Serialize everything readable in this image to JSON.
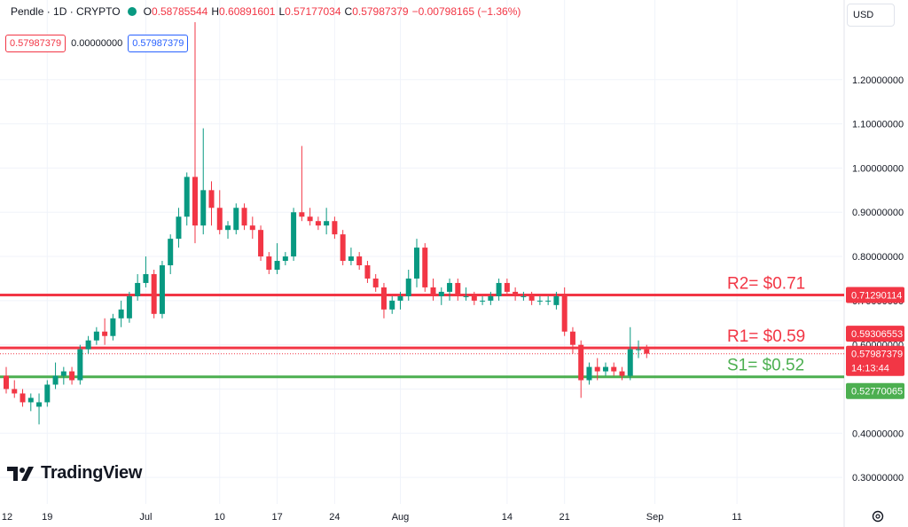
{
  "header": {
    "symbol": "Pendle · 1D · CRYPTO",
    "o_label": "O",
    "o_value": "0.58785544",
    "h_label": "H",
    "h_value": "0.60891601",
    "l_label": "L",
    "l_value": "0.57177034",
    "c_label": "C",
    "c_value": "0.57987379",
    "change": "−0.00798165 (−1.36%)"
  },
  "badges": {
    "price_left": "0.57987379",
    "zero": "0.00000000",
    "price_right": "0.57987379"
  },
  "currency": "USD",
  "logo_text": "TradingView",
  "colors": {
    "up": "#089981",
    "down": "#f23645",
    "resistance": "#f23645",
    "support": "#4caf50"
  },
  "chart_data": {
    "type": "candlestick",
    "y_ticks": [
      "0.30000000",
      "0.40000000",
      "0.50000000",
      "0.60000000",
      "0.70000000",
      "0.80000000",
      "0.90000000",
      "1.00000000",
      "1.10000000",
      "1.20000000"
    ],
    "ylim": [
      0.24,
      1.3
    ],
    "x_ticks": [
      {
        "label": "12",
        "day": -2
      },
      {
        "label": "19",
        "day": 5
      },
      {
        "label": "Jul",
        "day": 17
      },
      {
        "label": "10",
        "day": 26
      },
      {
        "label": "17",
        "day": 33
      },
      {
        "label": "24",
        "day": 40
      },
      {
        "label": "Aug",
        "day": 48
      },
      {
        "label": "14",
        "day": 61
      },
      {
        "label": "21",
        "day": 68
      },
      {
        "label": "Sep",
        "day": 79
      },
      {
        "label": "11",
        "day": 89
      }
    ],
    "levels": [
      {
        "name": "R2",
        "label": "R2= $0.71",
        "value": 0.7129,
        "price_label": "0.71290114",
        "color": "#f23645"
      },
      {
        "name": "R1",
        "label": "R1= $0.59",
        "value": 0.5931,
        "price_label": "0.59306553",
        "color": "#f23645"
      },
      {
        "name": "S1",
        "label": "S1= $0.52",
        "value": 0.5277,
        "price_label": "0.52770065",
        "color": "#4caf50"
      }
    ],
    "last_price": {
      "value": 0.5799,
      "label": "0.57987379",
      "countdown": "14:13:44"
    },
    "candles": [
      [
        0.53,
        0.55,
        0.49,
        0.5
      ],
      [
        0.5,
        0.52,
        0.48,
        0.49
      ],
      [
        0.49,
        0.5,
        0.46,
        0.47
      ],
      [
        0.47,
        0.49,
        0.45,
        0.48
      ],
      [
        0.46,
        0.49,
        0.42,
        0.47
      ],
      [
        0.47,
        0.52,
        0.46,
        0.51
      ],
      [
        0.51,
        0.56,
        0.5,
        0.53
      ],
      [
        0.53,
        0.55,
        0.51,
        0.54
      ],
      [
        0.54,
        0.55,
        0.51,
        0.52
      ],
      [
        0.52,
        0.6,
        0.51,
        0.59
      ],
      [
        0.59,
        0.62,
        0.58,
        0.61
      ],
      [
        0.61,
        0.64,
        0.6,
        0.63
      ],
      [
        0.63,
        0.66,
        0.6,
        0.62
      ],
      [
        0.62,
        0.67,
        0.61,
        0.66
      ],
      [
        0.66,
        0.7,
        0.64,
        0.68
      ],
      [
        0.66,
        0.72,
        0.65,
        0.71
      ],
      [
        0.71,
        0.76,
        0.7,
        0.74
      ],
      [
        0.74,
        0.8,
        0.73,
        0.76
      ],
      [
        0.76,
        0.77,
        0.66,
        0.67
      ],
      [
        0.67,
        0.79,
        0.66,
        0.78
      ],
      [
        0.78,
        0.85,
        0.76,
        0.84
      ],
      [
        0.84,
        0.91,
        0.82,
        0.89
      ],
      [
        0.89,
        0.99,
        0.87,
        0.98
      ],
      [
        0.98,
        1.33,
        0.83,
        0.87
      ],
      [
        0.87,
        1.09,
        0.85,
        0.95
      ],
      [
        0.95,
        0.97,
        0.87,
        0.91
      ],
      [
        0.91,
        0.95,
        0.85,
        0.86
      ],
      [
        0.86,
        0.88,
        0.84,
        0.87
      ],
      [
        0.86,
        0.92,
        0.85,
        0.91
      ],
      [
        0.91,
        0.92,
        0.86,
        0.87
      ],
      [
        0.87,
        0.89,
        0.84,
        0.86
      ],
      [
        0.86,
        0.87,
        0.79,
        0.8
      ],
      [
        0.8,
        0.81,
        0.76,
        0.77
      ],
      [
        0.77,
        0.83,
        0.76,
        0.79
      ],
      [
        0.79,
        0.81,
        0.78,
        0.8
      ],
      [
        0.8,
        0.91,
        0.79,
        0.9
      ],
      [
        0.9,
        1.05,
        0.88,
        0.89
      ],
      [
        0.89,
        0.91,
        0.87,
        0.88
      ],
      [
        0.88,
        0.89,
        0.86,
        0.87
      ],
      [
        0.87,
        0.91,
        0.85,
        0.88
      ],
      [
        0.88,
        0.89,
        0.84,
        0.85
      ],
      [
        0.85,
        0.86,
        0.78,
        0.79
      ],
      [
        0.79,
        0.82,
        0.78,
        0.8
      ],
      [
        0.8,
        0.81,
        0.77,
        0.78
      ],
      [
        0.78,
        0.79,
        0.74,
        0.75
      ],
      [
        0.75,
        0.76,
        0.72,
        0.73
      ],
      [
        0.73,
        0.74,
        0.66,
        0.68
      ],
      [
        0.68,
        0.71,
        0.67,
        0.7
      ],
      [
        0.7,
        0.72,
        0.68,
        0.71
      ],
      [
        0.71,
        0.77,
        0.7,
        0.75
      ],
      [
        0.75,
        0.84,
        0.73,
        0.82
      ],
      [
        0.82,
        0.83,
        0.72,
        0.73
      ],
      [
        0.73,
        0.75,
        0.7,
        0.71
      ],
      [
        0.71,
        0.73,
        0.69,
        0.72
      ],
      [
        0.72,
        0.75,
        0.7,
        0.74
      ],
      [
        0.74,
        0.75,
        0.7,
        0.71
      ],
      [
        0.71,
        0.73,
        0.7,
        0.71
      ],
      [
        0.71,
        0.72,
        0.69,
        0.7
      ],
      [
        0.7,
        0.71,
        0.69,
        0.7
      ],
      [
        0.7,
        0.72,
        0.69,
        0.71
      ],
      [
        0.71,
        0.75,
        0.7,
        0.74
      ],
      [
        0.74,
        0.75,
        0.71,
        0.72
      ],
      [
        0.72,
        0.73,
        0.7,
        0.71
      ],
      [
        0.71,
        0.72,
        0.7,
        0.71
      ],
      [
        0.71,
        0.72,
        0.69,
        0.7
      ],
      [
        0.7,
        0.71,
        0.69,
        0.7
      ],
      [
        0.7,
        0.71,
        0.69,
        0.7
      ],
      [
        0.69,
        0.72,
        0.68,
        0.71
      ],
      [
        0.71,
        0.73,
        0.62,
        0.63
      ],
      [
        0.63,
        0.64,
        0.58,
        0.6
      ],
      [
        0.6,
        0.61,
        0.48,
        0.52
      ],
      [
        0.52,
        0.56,
        0.51,
        0.55
      ],
      [
        0.55,
        0.57,
        0.52,
        0.54
      ],
      [
        0.54,
        0.56,
        0.53,
        0.55
      ],
      [
        0.55,
        0.56,
        0.53,
        0.54
      ],
      [
        0.54,
        0.55,
        0.52,
        0.53
      ],
      [
        0.53,
        0.64,
        0.52,
        0.59
      ],
      [
        0.59,
        0.61,
        0.57,
        0.59
      ],
      [
        0.59,
        0.6,
        0.57,
        0.58
      ]
    ]
  }
}
